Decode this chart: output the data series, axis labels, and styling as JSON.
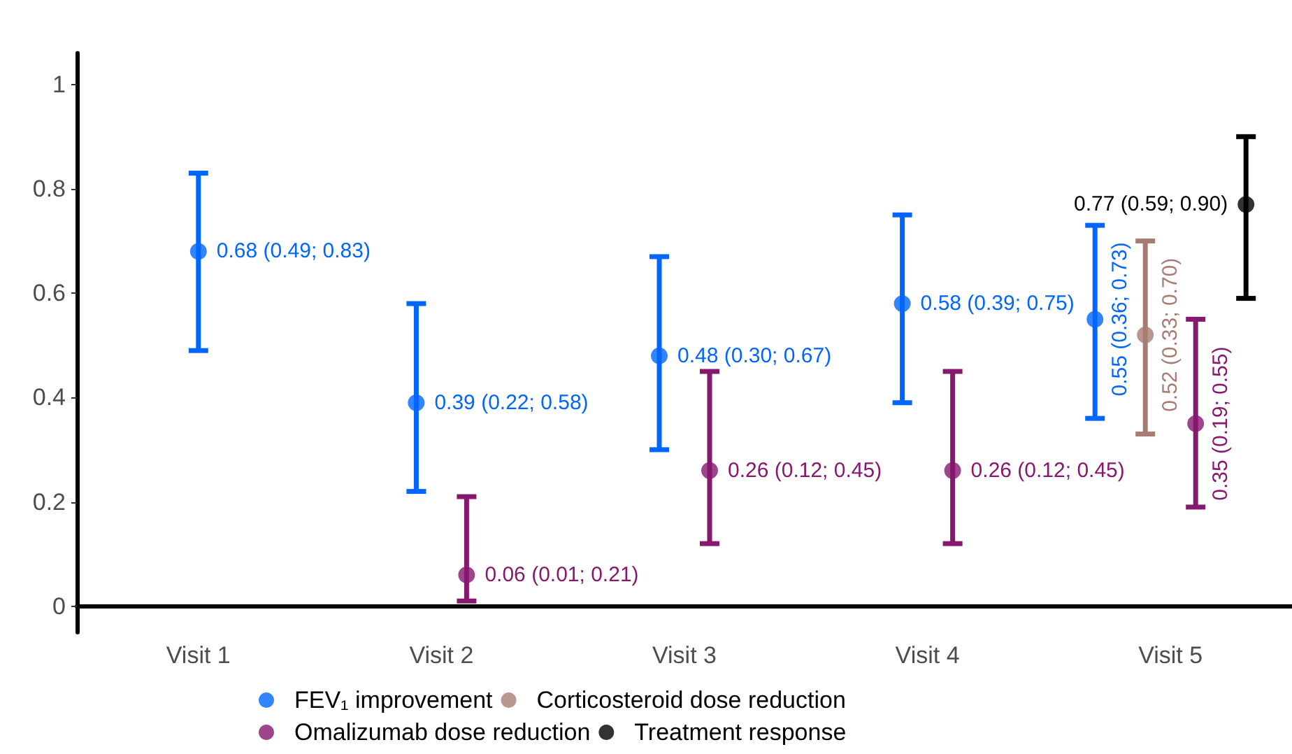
{
  "chart_data": {
    "type": "scatter",
    "categories": [
      "Visit 1",
      "Visit 2",
      "Visit 3",
      "Visit 4",
      "Visit 5"
    ],
    "series": [
      {
        "name": "FEV₁ improvement",
        "color": "#0066ff",
        "values": [
          0.68,
          0.39,
          0.48,
          0.58,
          0.55
        ],
        "errors": [
          [
            0.49,
            0.83
          ],
          [
            0.22,
            0.58
          ],
          [
            0.3,
            0.67
          ],
          [
            0.39,
            0.75
          ],
          [
            0.36,
            0.73
          ]
        ],
        "value_labels": [
          "0.68 (0.49; 0.83)",
          "0.39 (0.22; 0.58)",
          "0.48 (0.30; 0.67)",
          "0.58 (0.39; 0.75)",
          "0.55 (0.36; 0.73)"
        ]
      },
      {
        "name": "Corticosteroid dose reduction",
        "color": "#a87c72",
        "values": [
          null,
          null,
          null,
          null,
          0.52
        ],
        "errors": [
          null,
          null,
          null,
          null,
          [
            0.33,
            0.7
          ]
        ],
        "value_labels": [
          null,
          null,
          null,
          null,
          "0.52 (0.33; 0.70)"
        ]
      },
      {
        "name": "Omalizumab dose reduction",
        "color": "#86186e",
        "values": [
          null,
          0.06,
          0.26,
          0.26,
          0.35
        ],
        "errors": [
          null,
          [
            0.01,
            0.21
          ],
          [
            0.12,
            0.45
          ],
          [
            0.12,
            0.45
          ],
          [
            0.19,
            0.55
          ]
        ],
        "value_labels": [
          null,
          "0.06 (0.01; 0.21)",
          "0.26 (0.12; 0.45)",
          "0.26 (0.12; 0.45)",
          "0.35 (0.19; 0.55)"
        ]
      },
      {
        "name": "Treatment response",
        "color": "#000000",
        "values": [
          null,
          null,
          null,
          null,
          0.77
        ],
        "errors": [
          null,
          null,
          null,
          null,
          [
            0.59,
            0.9
          ]
        ],
        "value_labels": [
          null,
          null,
          null,
          null,
          "0.77 (0.59; 0.90)"
        ]
      }
    ],
    "ylim": [
      -0.05,
      1.06
    ],
    "yticks": [
      0,
      0.2,
      0.4,
      0.6,
      0.8,
      1
    ],
    "grid": false,
    "legend": "bottom",
    "marker": "circle"
  }
}
